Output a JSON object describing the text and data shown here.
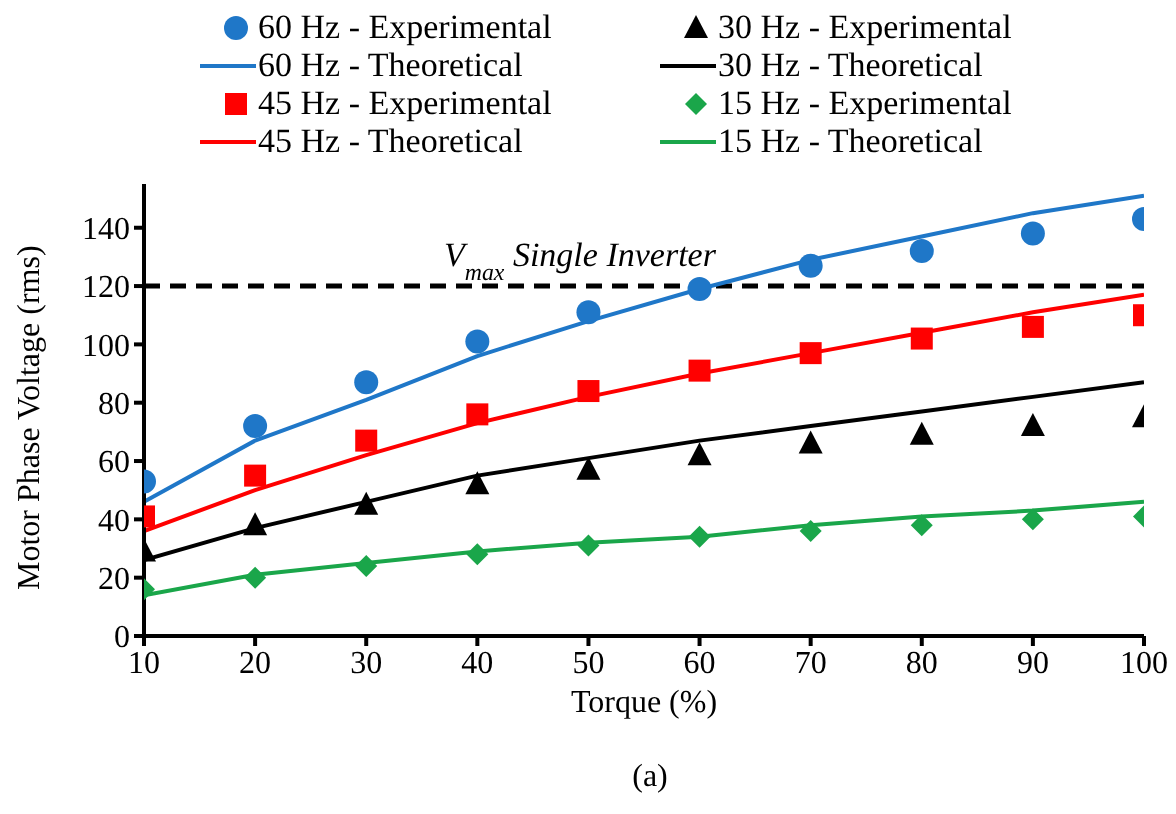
{
  "chart_data": {
    "type": "line",
    "xlabel": "Torque (%)",
    "ylabel": "Motor Phase Voltage (rms)",
    "x": [
      10,
      20,
      30,
      40,
      50,
      60,
      70,
      80,
      90,
      100
    ],
    "series": [
      {
        "name": "60 Hz - Experimental",
        "type": "scatter",
        "marker": "circle",
        "color": "#1f77c8",
        "values": [
          53,
          72,
          87,
          101,
          111,
          119,
          127,
          132,
          138,
          143
        ]
      },
      {
        "name": "60 Hz - Theoretical",
        "color": "#1f77c8",
        "values": [
          46,
          67,
          81,
          96,
          108,
          119,
          129,
          137,
          145,
          151
        ]
      },
      {
        "name": "45 Hz - Experimental",
        "type": "scatter",
        "marker": "square",
        "color": "#ff0000",
        "values": [
          41,
          55,
          67,
          76,
          84,
          91,
          97,
          102,
          106,
          110
        ]
      },
      {
        "name": "45 Hz - Theoretical",
        "color": "#ff0000",
        "values": [
          36,
          50,
          62,
          73,
          82,
          90,
          97,
          104,
          111,
          117
        ]
      },
      {
        "name": "30 Hz - Experimental",
        "type": "scatter",
        "marker": "triangle",
        "color": "#000000",
        "values": [
          29,
          38,
          45,
          52,
          57,
          62,
          66,
          69,
          72,
          75
        ]
      },
      {
        "name": "30 Hz - Theoretical",
        "color": "#000000",
        "values": [
          26,
          37,
          46,
          55,
          61,
          67,
          72,
          77,
          82,
          87
        ]
      },
      {
        "name": "15 Hz - Experimental",
        "type": "scatter",
        "marker": "diamond",
        "color": "#1aa64a",
        "values": [
          16,
          20,
          24,
          28,
          31,
          34,
          36,
          38,
          40,
          41
        ]
      },
      {
        "name": "15 Hz - Theoretical",
        "color": "#1aa64a",
        "values": [
          14,
          21,
          25,
          29,
          32,
          34,
          38,
          41,
          43,
          46
        ]
      }
    ],
    "xlim": [
      10,
      100
    ],
    "xticks": [
      10,
      20,
      30,
      40,
      50,
      60,
      70,
      80,
      90,
      100
    ],
    "ylim": [
      0,
      155
    ],
    "yticks": [
      0,
      20,
      40,
      60,
      80,
      100,
      120,
      140
    ],
    "ref_lines": [
      {
        "axis": "y",
        "value": 120,
        "label": "V$_{max}$ Single Inverter",
        "color": "#000000",
        "line_style": "dashed"
      }
    ],
    "annotations": [
      "(a)"
    ],
    "legend": "top",
    "grid": false
  }
}
